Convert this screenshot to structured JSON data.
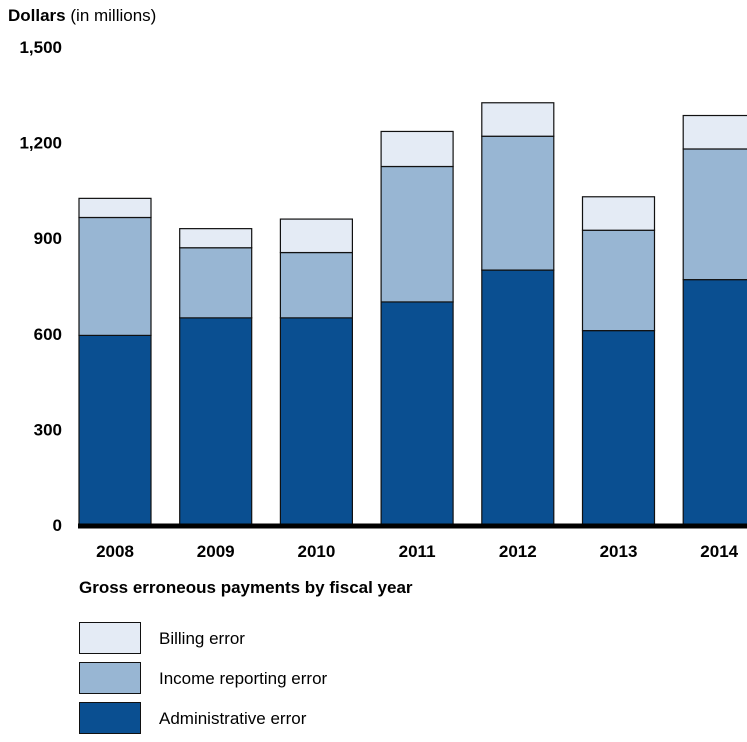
{
  "chart_data": {
    "type": "bar",
    "stacked": true,
    "title": "",
    "ylabel_bold": "Dollars",
    "ylabel_rest": "(in millions)",
    "xlabel": "Gross erroneous payments by fiscal year",
    "ylim": [
      0,
      1500
    ],
    "yticks": [
      0,
      300,
      600,
      900,
      1200,
      1500
    ],
    "ytick_labels": [
      "0",
      "300",
      "600",
      "900",
      "1,200",
      "1,500"
    ],
    "categories": [
      "2008",
      "2009",
      "2010",
      "2011",
      "2012",
      "2013",
      "2014"
    ],
    "series": [
      {
        "name": "Administrative error",
        "color": "#0a4f91",
        "values": [
          595,
          650,
          650,
          700,
          800,
          610,
          770
        ]
      },
      {
        "name": "Income reporting error",
        "color": "#98b6d3",
        "values": [
          370,
          220,
          205,
          425,
          420,
          315,
          410
        ]
      },
      {
        "name": "Billing error",
        "color": "#e4ebf5",
        "values": [
          60,
          60,
          105,
          110,
          105,
          105,
          105
        ]
      }
    ],
    "legend_order": [
      2,
      1,
      0
    ],
    "legend_position": "bottom-left",
    "grid": false
  }
}
